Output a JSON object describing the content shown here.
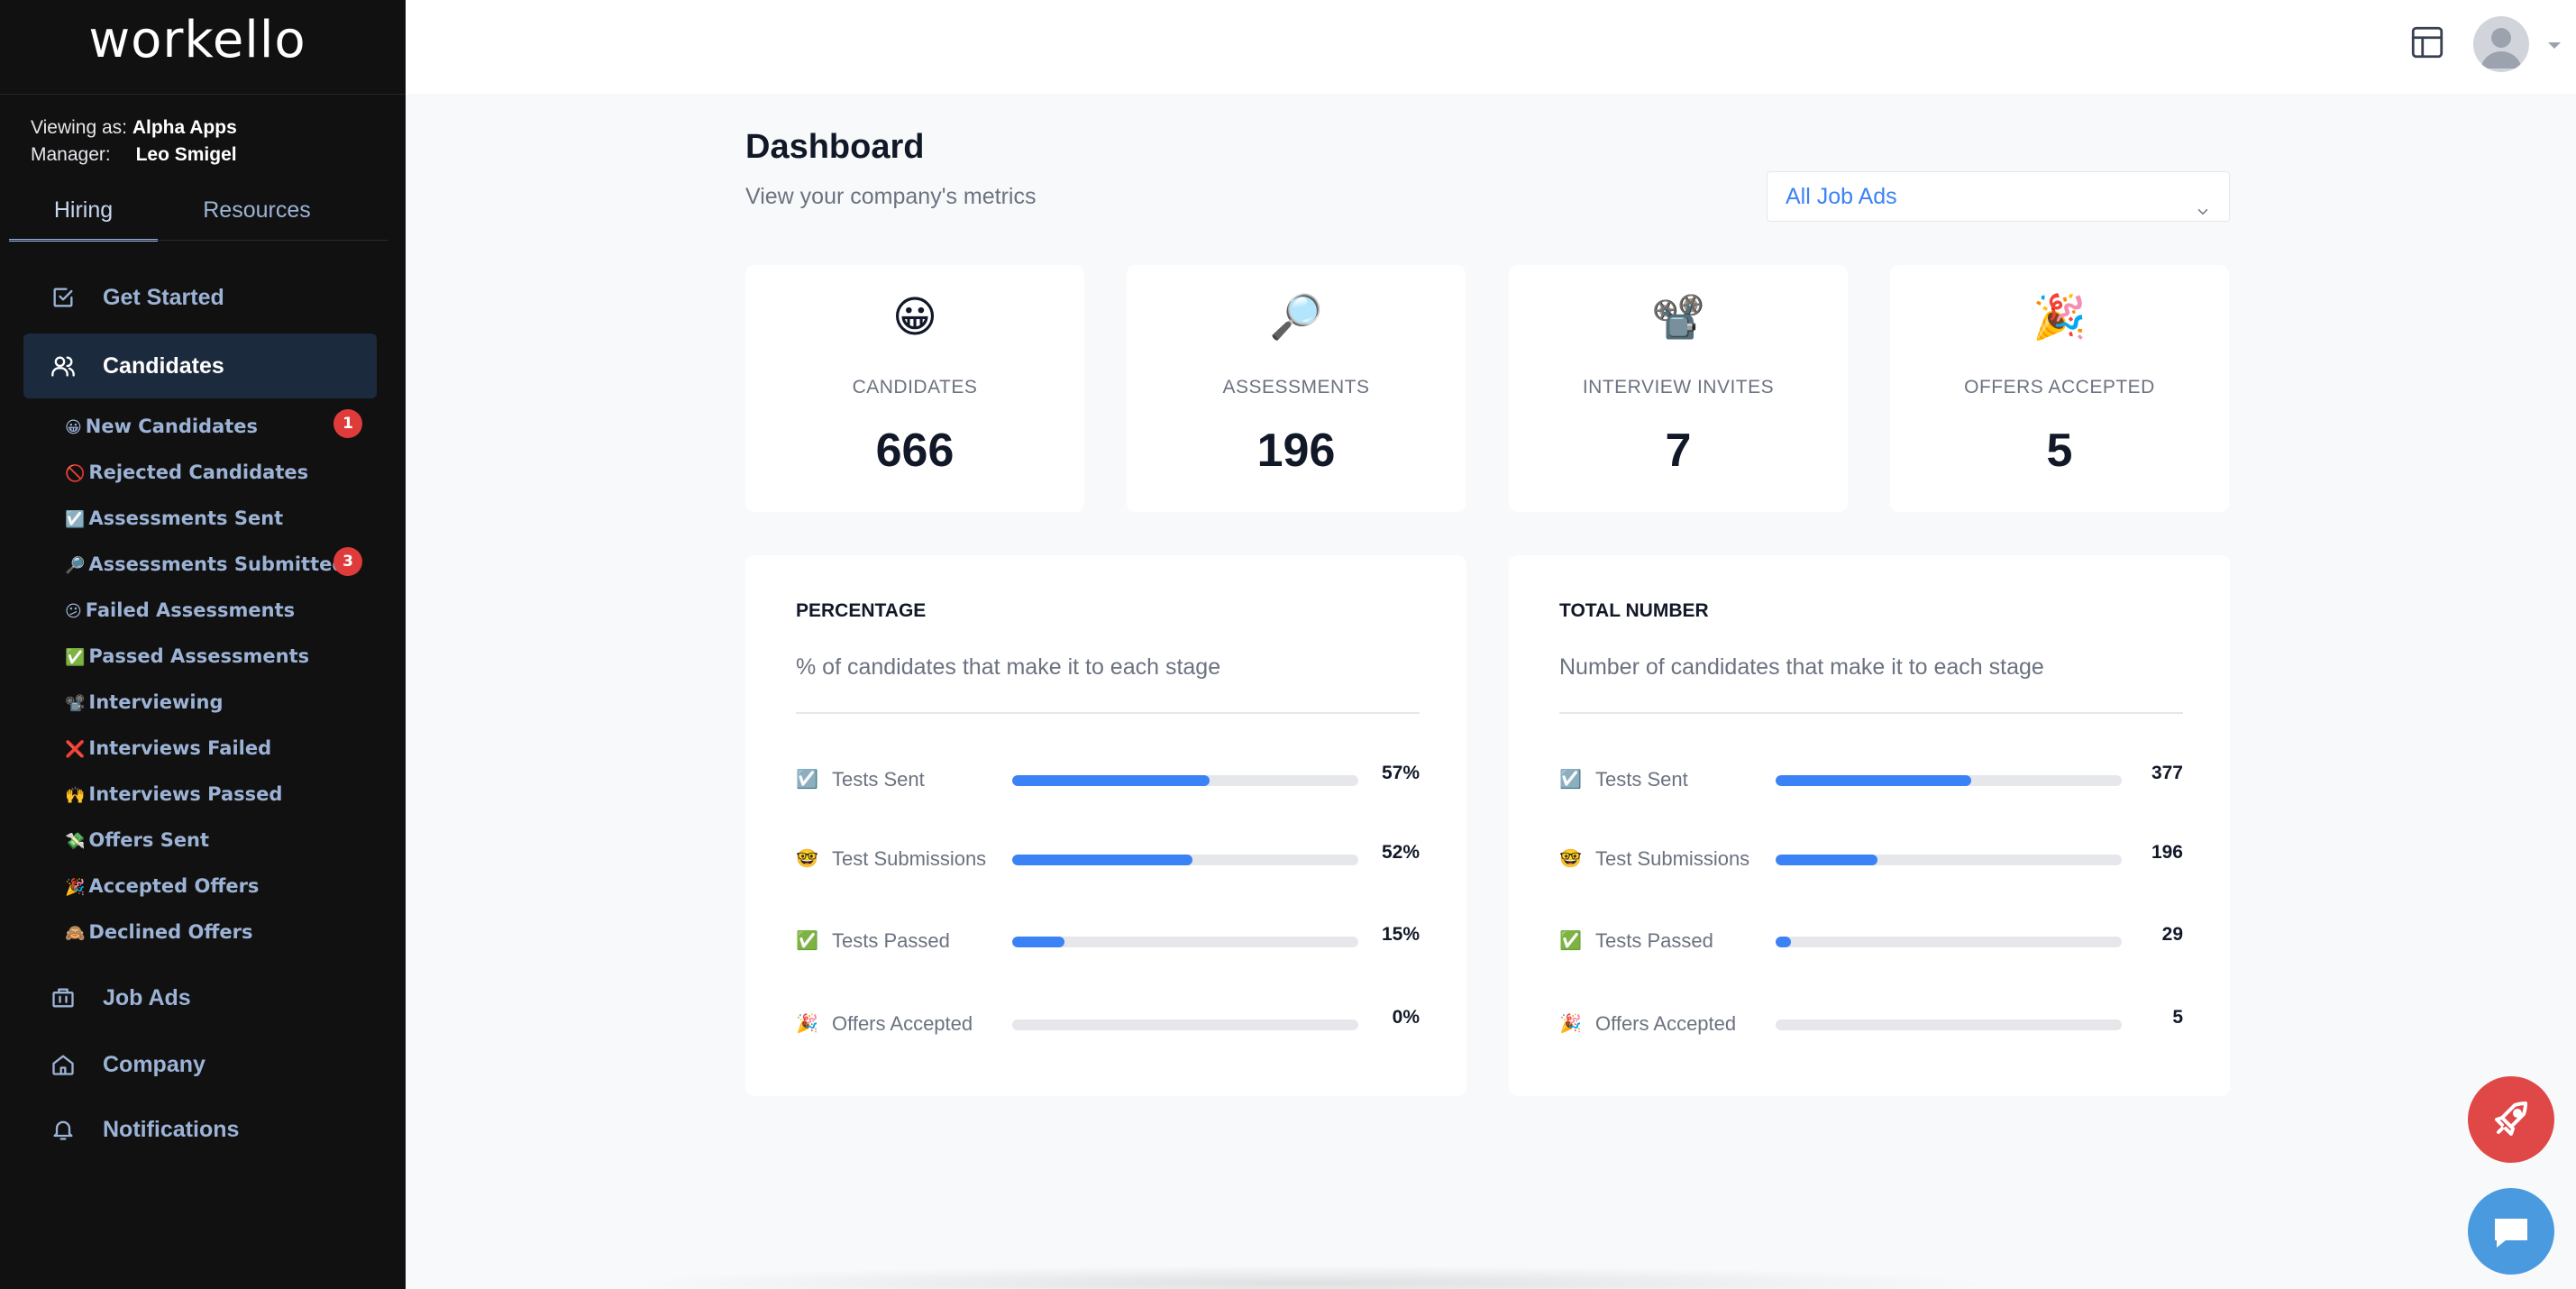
{
  "sidebar": {
    "logo": "workello",
    "viewing_label": "Viewing as:",
    "viewing_value": "Alpha Apps",
    "manager_label": "Manager:",
    "manager_value": "Leo Smigel",
    "tabs": [
      {
        "label": "Hiring",
        "active": true
      },
      {
        "label": "Resources",
        "active": false
      }
    ],
    "nav": {
      "get_started": "Get Started",
      "candidates": "Candidates",
      "job_ads": "Job Ads",
      "company": "Company",
      "notifications": "Notifications"
    },
    "sub_items": [
      {
        "emoji": "😀",
        "label": "New Candidates",
        "badge": "1"
      },
      {
        "emoji": "🚫",
        "label": "Rejected Candidates"
      },
      {
        "emoji": "☑️",
        "label": "Assessments Sent"
      },
      {
        "emoji": "🔎",
        "label": "Assessments Submitted",
        "badge": "3"
      },
      {
        "emoji": "😕",
        "label": "Failed Assessments"
      },
      {
        "emoji": "✅",
        "label": "Passed Assessments"
      },
      {
        "emoji": "📽️",
        "label": "Interviewing"
      },
      {
        "emoji": "❌",
        "label": "Interviews Failed"
      },
      {
        "emoji": "🙌",
        "label": "Interviews Passed"
      },
      {
        "emoji": "💸",
        "label": "Offers Sent"
      },
      {
        "emoji": "🎉",
        "label": "Accepted Offers"
      },
      {
        "emoji": "🙈",
        "label": "Declined Offers"
      }
    ]
  },
  "header": {
    "title": "Dashboard",
    "subtitle": "View your company's metrics",
    "job_filter": "All Job Ads"
  },
  "stats": [
    {
      "emoji": "😀",
      "label": "CANDIDATES",
      "value": "666"
    },
    {
      "emoji": "🔎",
      "label": "ASSESSMENTS",
      "value": "196"
    },
    {
      "emoji": "📽️",
      "label": "INTERVIEW INVITES",
      "value": "7"
    },
    {
      "emoji": "🎉",
      "label": "OFFERS ACCEPTED",
      "value": "5"
    }
  ],
  "percentage_panel": {
    "title": "PERCENTAGE",
    "description": "% of candidates that make it to each stage",
    "rows": [
      {
        "emoji": "☑️",
        "label": "Tests Sent",
        "value": "57%",
        "fill": 0.57
      },
      {
        "emoji": "🤓",
        "label": "Test Submissions",
        "value": "52%",
        "fill": 0.52
      },
      {
        "emoji": "✅",
        "label": "Tests Passed",
        "value": "15%",
        "fill": 0.15
      },
      {
        "emoji": "🎉",
        "label": "Offers Accepted",
        "value": "0%",
        "fill": 0.0
      }
    ]
  },
  "total_panel": {
    "title": "TOTAL NUMBER",
    "description": "Number of candidates that make it to each stage",
    "rows": [
      {
        "emoji": "☑️",
        "label": "Tests Sent",
        "value": "377",
        "fill": 0.566
      },
      {
        "emoji": "🤓",
        "label": "Test Submissions",
        "value": "196",
        "fill": 0.294
      },
      {
        "emoji": "✅",
        "label": "Tests Passed",
        "value": "29",
        "fill": 0.044
      },
      {
        "emoji": "🎉",
        "label": "Offers Accepted",
        "value": "5",
        "fill": 0.0
      }
    ]
  },
  "colors": {
    "sidebar_bg": "#111111",
    "accent": "#3b82f6",
    "badge": "#e03b3b",
    "rocket_button": "#e04848",
    "chat_button": "#4a9ae0"
  },
  "icons": {
    "layout": "layout-icon",
    "avatar": "user-avatar-icon",
    "rocket": "rocket-icon",
    "chat": "chat-icon"
  }
}
